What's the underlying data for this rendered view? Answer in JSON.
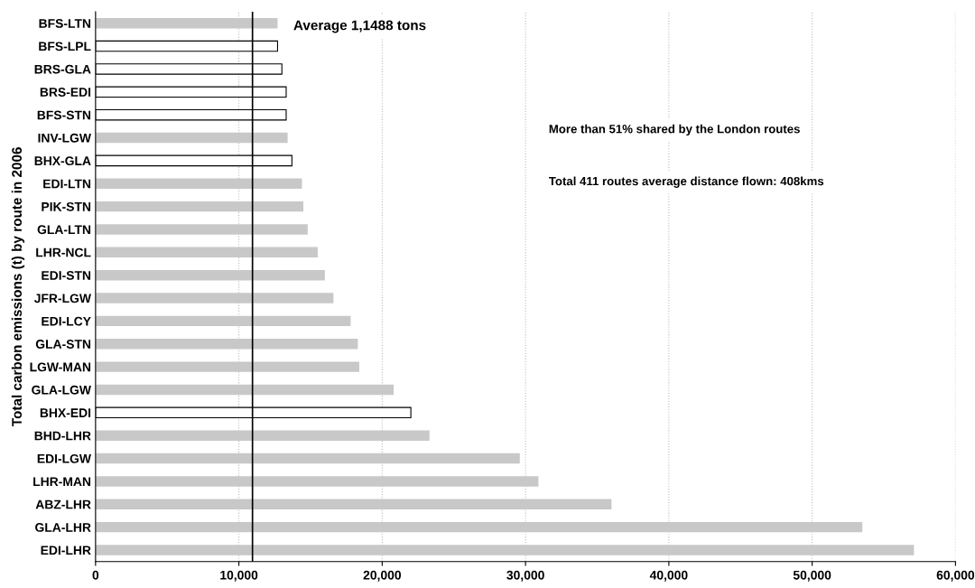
{
  "chart_data": {
    "type": "bar",
    "orientation": "horizontal",
    "ylabel": "Total carbon emissions (t) by route in 2006",
    "categories": [
      "BFS-LTN",
      "BFS-LPL",
      "BRS-GLA",
      "BRS-EDI",
      "BFS-STN",
      "INV-LGW",
      "BHX-GLA",
      "EDI-LTN",
      "PIK-STN",
      "GLA-LTN",
      "LHR-NCL",
      "EDI-STN",
      "JFR-LGW",
      "EDI-LCY",
      "GLA-STN",
      "LGW-MAN",
      "GLA-LGW",
      "BHX-EDI",
      "BHD-LHR",
      "EDI-LGW",
      "LHR-MAN",
      "ABZ-LHR",
      "GLA-LHR",
      "EDI-LHR"
    ],
    "values": [
      12700,
      12700,
      13000,
      13300,
      13300,
      13400,
      13700,
      14400,
      14500,
      14800,
      15500,
      16000,
      16600,
      17800,
      18300,
      18400,
      20800,
      22000,
      23300,
      29600,
      30900,
      36000,
      53500,
      57100
    ],
    "colors": [
      "#c8c8c8",
      "#ffffff",
      "#ffffff",
      "#ffffff",
      "#ffffff",
      "#c8c8c8",
      "#ffffff",
      "#c8c8c8",
      "#c8c8c8",
      "#c8c8c8",
      "#c8c8c8",
      "#c8c8c8",
      "#c8c8c8",
      "#c8c8c8",
      "#c8c8c8",
      "#c8c8c8",
      "#c8c8c8",
      "#ffffff",
      "#c8c8c8",
      "#c8c8c8",
      "#c8c8c8",
      "#c8c8c8",
      "#c8c8c8",
      "#c8c8c8"
    ],
    "xlim": [
      0,
      60000
    ],
    "xticks": [
      {
        "value": 0,
        "label": "0"
      },
      {
        "value": 10000,
        "label": "10,000"
      },
      {
        "value": 20000,
        "label": "20,000"
      },
      {
        "value": 30000,
        "label": "30,000"
      },
      {
        "value": 40000,
        "label": "40,000"
      },
      {
        "value": 50000,
        "label": "50,000"
      },
      {
        "value": 60000,
        "label": "60,000"
      }
    ],
    "ref_lines": [
      {
        "axis": "x",
        "value": 10950,
        "label": "Average 1,1488 tons",
        "color": "#000000"
      }
    ],
    "annotations": [
      "More than 51% shared by the London routes",
      "Total 411 routes average distance flown: 408kms"
    ],
    "grid": "x"
  }
}
